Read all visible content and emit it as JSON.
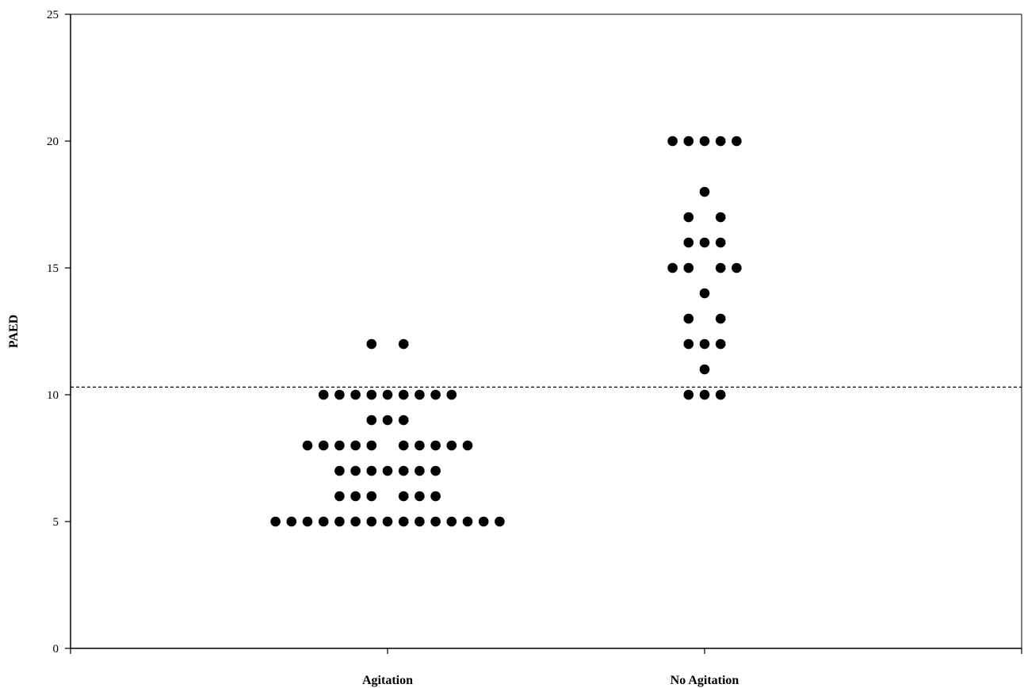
{
  "chart_data": {
    "type": "scatter",
    "title": "",
    "xlabel": "",
    "ylabel": "PAED",
    "ylim": [
      0,
      25
    ],
    "yticks": [
      0,
      5,
      10,
      15,
      20,
      25
    ],
    "categories": [
      "Agitation",
      "No Agitation"
    ],
    "grid": false,
    "legend": "none",
    "marker_color": "#000000",
    "reference_line": {
      "y": 10.3,
      "style": "dashed"
    },
    "series": [
      {
        "category": "Agitation",
        "values": [
          5,
          5,
          5,
          5,
          5,
          5,
          5,
          5,
          5,
          5,
          5,
          5,
          5,
          5,
          5,
          6,
          6,
          6,
          6,
          6,
          6,
          7,
          7,
          7,
          7,
          7,
          7,
          7,
          8,
          8,
          8,
          8,
          8,
          8,
          8,
          8,
          8,
          8,
          9,
          9,
          9,
          10,
          10,
          10,
          10,
          10,
          10,
          10,
          10,
          10,
          12,
          12
        ]
      },
      {
        "category": "No Agitation",
        "values": [
          10,
          10,
          10,
          11,
          12,
          12,
          12,
          13,
          13,
          14,
          15,
          15,
          15,
          15,
          16,
          16,
          16,
          17,
          17,
          18,
          20,
          20,
          20,
          20,
          20
        ]
      }
    ]
  }
}
